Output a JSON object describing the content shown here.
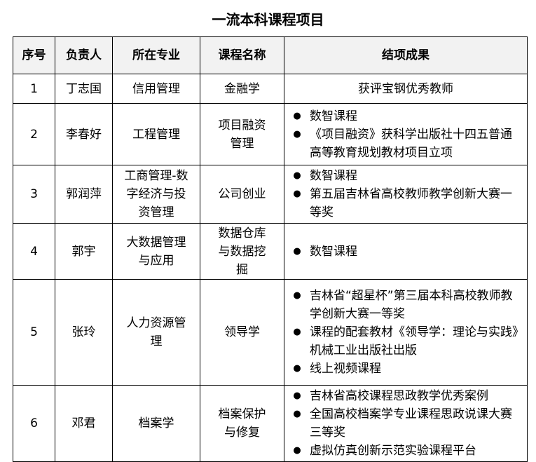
{
  "title": "一流本科课程项目",
  "headers": [
    "序号",
    "负责人",
    "所在专业",
    "课程名称",
    "结项成果"
  ],
  "rows": [
    {
      "no": "1",
      "leader": "丁志国",
      "major": "信用管理",
      "course": "金融学",
      "achievements": [
        "获评宝钢优秀教师"
      ]
    },
    {
      "no": "2",
      "leader": "李春好",
      "major": "工程管理",
      "course": "项目融资管理",
      "achievements": [
        "数智课程",
        "《项目融资》获科学出版社十四五普通高等教育规划教材项目立项"
      ]
    },
    {
      "no": "3",
      "leader": "郭润萍",
      "major": "工商管理-数字经济与投资管理",
      "course": "公司创业",
      "achievements": [
        "数智课程",
        "第五届吉林省高校教师教学创新大赛一等奖"
      ]
    },
    {
      "no": "4",
      "leader": "郭宇",
      "major": "大数据管理与应用",
      "course": "数据仓库与数据挖掘",
      "achievements": [
        "数智课程"
      ]
    },
    {
      "no": "5",
      "leader": "张玲",
      "major": "人力资源管理",
      "course": "领导学",
      "achievements": [
        "吉林省“超星杯”第三届本科高校教师教学创新大赛一等奖",
        "课程的配套教材《领导学：理论与实践》机械工业出版社出版",
        "线上视频课程"
      ]
    },
    {
      "no": "6",
      "leader": "邓君",
      "major": "档案学",
      "course": "档案保护与修复",
      "achievements": [
        "吉林省高校课程思政教学优秀案例",
        "全国高校档案学专业课程思政说课大赛三等奖",
        "虚拟仿真创新示范实验课程平台"
      ]
    }
  ],
  "bullet_icon": "black-circle-bullet"
}
